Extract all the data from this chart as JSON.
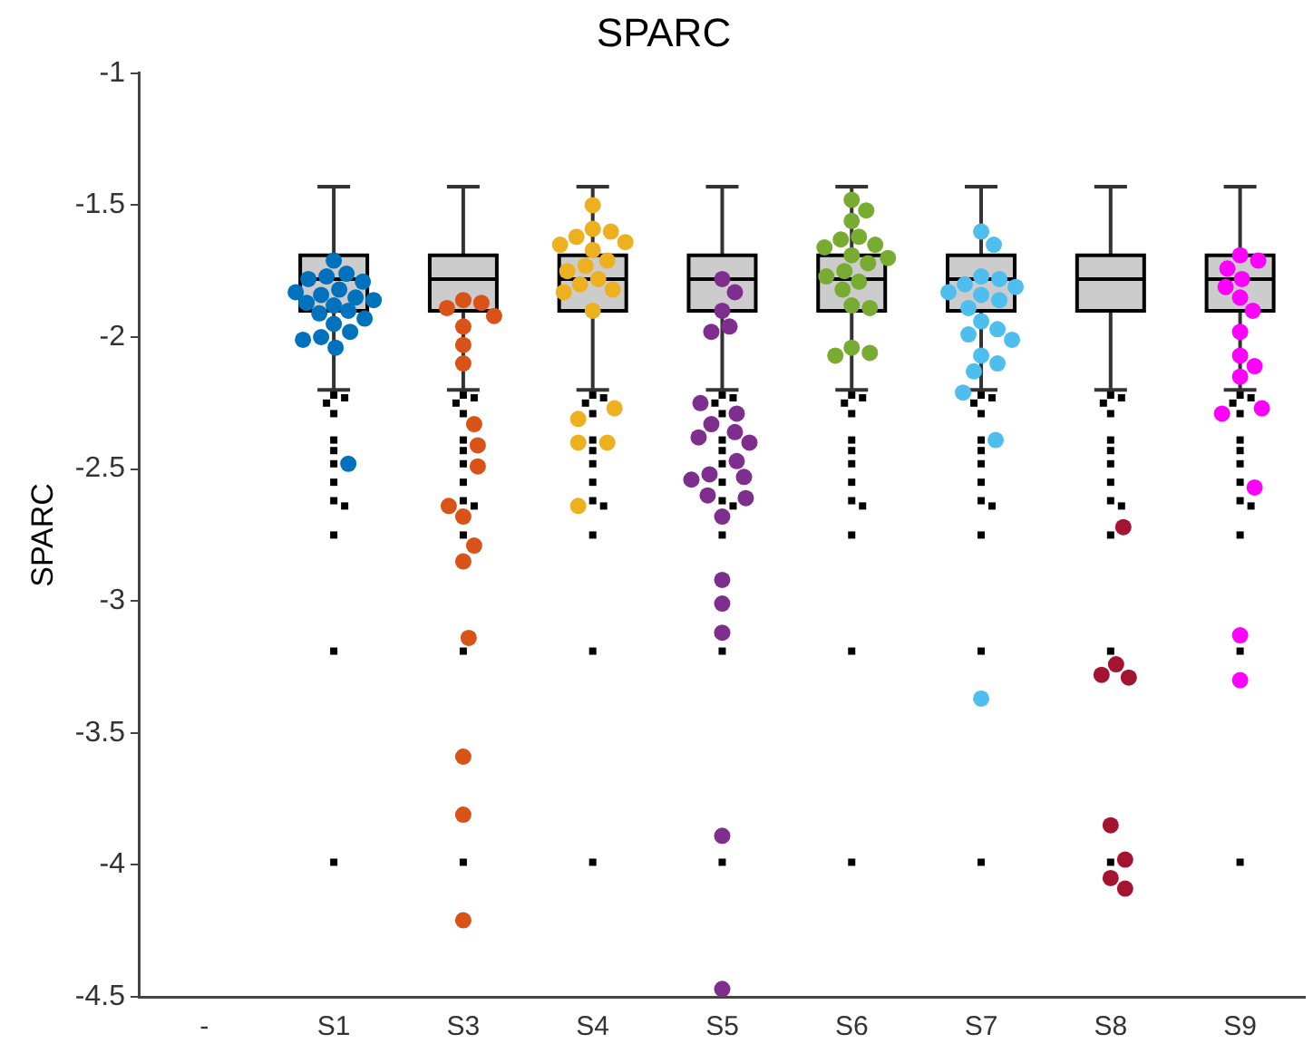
{
  "chart_data": {
    "type": "box",
    "title": "SPARC",
    "ylabel": "SPARC",
    "categories": [
      "-",
      "S1",
      "S3",
      "S4",
      "S5",
      "S6",
      "S7",
      "S8",
      "S9"
    ],
    "color": "#cccccc",
    "boxes": [
      null,
      {
        "low": -2.2,
        "q1": -1.9,
        "median": -1.78,
        "q3": -1.69,
        "high": -1.43,
        "outliers": [
          -2.22,
          -2.23,
          -2.25,
          -2.29,
          -2.39,
          -2.43,
          -2.48,
          -2.55,
          -2.62,
          -2.64,
          -2.75,
          -3.19,
          -3.99
        ]
      },
      {
        "low": -2.2,
        "q1": -1.9,
        "median": -1.78,
        "q3": -1.69,
        "high": -1.43,
        "outliers": [
          -2.22,
          -2.23,
          -2.25,
          -2.29,
          -2.39,
          -2.43,
          -2.48,
          -2.55,
          -2.62,
          -2.64,
          -2.75,
          -3.19,
          -3.99
        ]
      },
      {
        "low": -2.2,
        "q1": -1.9,
        "median": -1.78,
        "q3": -1.69,
        "high": -1.43,
        "outliers": [
          -2.22,
          -2.23,
          -2.25,
          -2.29,
          -2.39,
          -2.43,
          -2.48,
          -2.55,
          -2.62,
          -2.64,
          -2.75,
          -3.19,
          -3.99
        ]
      },
      {
        "low": -2.2,
        "q1": -1.9,
        "median": -1.78,
        "q3": -1.69,
        "high": -1.43,
        "outliers": [
          -2.22,
          -2.23,
          -2.25,
          -2.29,
          -2.39,
          -2.43,
          -2.48,
          -2.55,
          -2.62,
          -2.64,
          -2.75,
          -3.19,
          -3.99
        ]
      },
      {
        "low": -2.2,
        "q1": -1.9,
        "median": -1.78,
        "q3": -1.69,
        "high": -1.43,
        "outliers": [
          -2.22,
          -2.23,
          -2.25,
          -2.29,
          -2.39,
          -2.43,
          -2.48,
          -2.55,
          -2.62,
          -2.64,
          -2.75,
          -3.19,
          -3.99
        ]
      },
      {
        "low": -2.2,
        "q1": -1.9,
        "median": -1.78,
        "q3": -1.69,
        "high": -1.43,
        "outliers": [
          -2.22,
          -2.23,
          -2.25,
          -2.29,
          -2.39,
          -2.43,
          -2.48,
          -2.55,
          -2.62,
          -2.64,
          -2.75,
          -3.19,
          -3.99
        ]
      },
      {
        "low": -2.2,
        "q1": -1.9,
        "median": -1.78,
        "q3": -1.69,
        "high": -1.43,
        "outliers": [
          -2.22,
          -2.23,
          -2.25,
          -2.29,
          -2.39,
          -2.43,
          -2.48,
          -2.55,
          -2.62,
          -2.64,
          -2.75,
          -3.19,
          -3.99
        ]
      },
      {
        "low": -2.2,
        "q1": -1.9,
        "median": -1.78,
        "q3": -1.69,
        "high": -1.43,
        "outliers": [
          -2.22,
          -2.23,
          -2.25,
          -2.29,
          -2.39,
          -2.43,
          -2.48,
          -2.55,
          -2.62,
          -2.64,
          -2.75,
          -3.19,
          -3.99
        ]
      }
    ],
    "series": [
      {
        "type": "scatter",
        "color": "#0072bd",
        "x": [
          "S1",
          "S1",
          "S1",
          "S1",
          "S1",
          "S1",
          "S1",
          "S1",
          "S1",
          "S1",
          "S1",
          "S1",
          "S1",
          "S1",
          "S1",
          "S1",
          "S1",
          "S1",
          "S1",
          "S1",
          "S1"
        ],
        "values": [
          -1.71,
          -1.76,
          -1.77,
          -1.78,
          -1.79,
          -1.82,
          -1.83,
          -1.84,
          -1.85,
          -1.86,
          -1.87,
          -1.88,
          -1.9,
          -1.91,
          -1.93,
          -1.95,
          -1.98,
          -2.0,
          -2.01,
          -2.04,
          -2.48
        ]
      },
      {
        "type": "scatter",
        "color": "#d95319",
        "x": [
          "S3",
          "S3",
          "S3",
          "S3",
          "S3",
          "S3",
          "S3",
          "S3",
          "S3",
          "S3",
          "S3",
          "S3",
          "S3",
          "S3",
          "S3",
          "S3",
          "S3",
          "S3"
        ],
        "values": [
          -1.86,
          -1.87,
          -1.89,
          -1.92,
          -1.96,
          -2.03,
          -2.1,
          -2.33,
          -2.41,
          -2.49,
          -2.64,
          -2.68,
          -2.79,
          -2.85,
          -3.14,
          -3.59,
          -3.81,
          -4.21
        ]
      },
      {
        "type": "scatter",
        "color": "#edb120",
        "x": [
          "S4",
          "S4",
          "S4",
          "S4",
          "S4",
          "S4",
          "S4",
          "S4",
          "S4",
          "S4",
          "S4",
          "S4",
          "S4",
          "S4",
          "S4",
          "S4",
          "S4",
          "S4",
          "S4",
          "S4"
        ],
        "values": [
          -1.5,
          -1.59,
          -1.6,
          -1.62,
          -1.64,
          -1.65,
          -1.67,
          -1.71,
          -1.73,
          -1.75,
          -1.78,
          -1.8,
          -1.82,
          -1.83,
          -1.9,
          -2.27,
          -2.31,
          -2.4,
          -2.4,
          -2.64
        ]
      },
      {
        "type": "scatter",
        "color": "#7e2f8e",
        "x": [
          "S5",
          "S5",
          "S5",
          "S5",
          "S5",
          "S5",
          "S5",
          "S5",
          "S5",
          "S5",
          "S5",
          "S5",
          "S5",
          "S5",
          "S5",
          "S5",
          "S5",
          "S5",
          "S5",
          "S5",
          "S5",
          "S5",
          "S5"
        ],
        "values": [
          -1.78,
          -1.83,
          -1.9,
          -1.96,
          -1.98,
          -2.25,
          -2.29,
          -2.33,
          -2.36,
          -2.38,
          -2.4,
          -2.47,
          -2.52,
          -2.53,
          -2.54,
          -2.6,
          -2.61,
          -2.68,
          -2.92,
          -3.01,
          -3.12,
          -3.89,
          -4.47
        ]
      },
      {
        "type": "scatter",
        "color": "#77ac30",
        "x": [
          "S6",
          "S6",
          "S6",
          "S6",
          "S6",
          "S6",
          "S6",
          "S6",
          "S6",
          "S6",
          "S6",
          "S6",
          "S6",
          "S6",
          "S6",
          "S6",
          "S6",
          "S6",
          "S6"
        ],
        "values": [
          -1.48,
          -1.52,
          -1.56,
          -1.62,
          -1.63,
          -1.65,
          -1.66,
          -1.69,
          -1.7,
          -1.72,
          -1.75,
          -1.77,
          -1.79,
          -1.82,
          -1.88,
          -1.89,
          -2.04,
          -2.06,
          -2.07
        ]
      },
      {
        "type": "scatter",
        "color": "#4dbeee",
        "x": [
          "S7",
          "S7",
          "S7",
          "S7",
          "S7",
          "S7",
          "S7",
          "S7",
          "S7",
          "S7",
          "S7",
          "S7",
          "S7",
          "S7",
          "S7",
          "S7",
          "S7",
          "S7",
          "S7",
          "S7"
        ],
        "values": [
          -1.6,
          -1.65,
          -1.77,
          -1.78,
          -1.8,
          -1.81,
          -1.83,
          -1.84,
          -1.86,
          -1.89,
          -1.94,
          -1.97,
          -1.99,
          -2.01,
          -2.07,
          -2.1,
          -2.13,
          -2.21,
          -2.39,
          -3.37
        ]
      },
      {
        "type": "scatter",
        "color": "#a2142f",
        "x": [
          "S8",
          "S8",
          "S8",
          "S8",
          "S8",
          "S8",
          "S8",
          "S8"
        ],
        "values": [
          -2.72,
          -3.24,
          -3.28,
          -3.29,
          -3.85,
          -3.98,
          -4.05,
          -4.09
        ]
      },
      {
        "type": "scatter",
        "color": "#ff00ff",
        "x": [
          "S9",
          "S9",
          "S9",
          "S9",
          "S9",
          "S9",
          "S9",
          "S9",
          "S9",
          "S9",
          "S9",
          "S9",
          "S9",
          "S9",
          "S9",
          "S9"
        ],
        "values": [
          -1.69,
          -1.71,
          -1.74,
          -1.78,
          -1.81,
          -1.85,
          -1.9,
          -1.98,
          -2.07,
          -2.11,
          -2.15,
          -2.27,
          -2.29,
          -2.57,
          -3.13,
          -3.3
        ]
      }
    ],
    "ylim": [
      -4.5,
      -1
    ],
    "yticks": [
      -4.5,
      -4,
      -3.5,
      -3,
      -2.5,
      -2,
      -1.5,
      -1
    ],
    "marker": "circle"
  }
}
